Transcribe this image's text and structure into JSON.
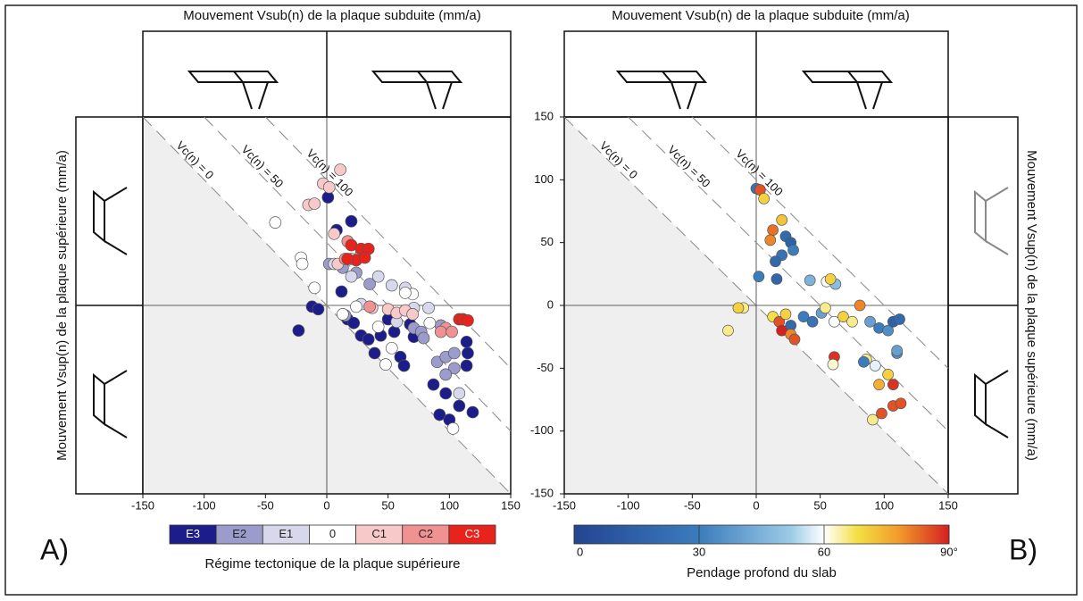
{
  "chart_data": [
    {
      "type": "scatter",
      "panel_label": "A)",
      "title": "Mouvement Vsub(n) de la plaque subduite (mm/a)",
      "y_label": "Mouvement Vsup(n) de la plaque supérieure (mm/a)",
      "xlim": [
        -150,
        150
      ],
      "ylim": [
        -150,
        150
      ],
      "xticks": [
        -150,
        -100,
        -50,
        0,
        50,
        100,
        150
      ],
      "annotations": [
        {
          "value": 0,
          "label": "Vc(n) = 0"
        },
        {
          "value": 50,
          "label": "Vc(n) = 50"
        },
        {
          "value": 100,
          "label": "Vc(n) = 100"
        }
      ],
      "legend_title": "Régime tectonique de la plaque supérieure",
      "series": [
        {
          "name": "E3",
          "color": "#1c1c8a",
          "x": [
            1,
            20,
            8,
            -12,
            -7,
            -23,
            12,
            17,
            22,
            28,
            34,
            44,
            55,
            68,
            71,
            60,
            63,
            87,
            97,
            92,
            100,
            115,
            114,
            108,
            119,
            114,
            50,
            39
          ],
          "y": [
            86,
            67,
            60,
            -1,
            -3,
            -20,
            11,
            -11,
            -14,
            -24,
            -27,
            -24,
            -21,
            -15,
            -25,
            -41,
            -48,
            -63,
            -70,
            -87,
            -91,
            -38,
            -48,
            -80,
            -85,
            -29,
            -11,
            -38
          ]
        },
        {
          "name": "E2",
          "color": "#9c9ccc",
          "x": [
            2,
            13,
            24,
            35,
            71,
            77,
            79,
            90,
            97,
            104,
            104,
            93,
            15,
            97
          ],
          "y": [
            33,
            30,
            26,
            17,
            -18,
            -21,
            -26,
            -45,
            -41,
            -50,
            -38,
            -16,
            -8,
            -55
          ]
        },
        {
          "name": "E1",
          "color": "#d8d8ec",
          "x": [
            6,
            20,
            42,
            53,
            64,
            71,
            83,
            28,
            57,
            108
          ],
          "y": [
            33,
            23,
            23,
            16,
            14,
            -2,
            -2,
            1,
            -13,
            -70
          ]
        },
        {
          "name": "0",
          "color": "#ffffff",
          "x": [
            -42,
            -21,
            -20,
            -10,
            13,
            24,
            42,
            48,
            53,
            103,
            70,
            84,
            64
          ],
          "y": [
            66,
            38,
            33,
            14,
            -7,
            -1,
            -17,
            -47,
            -34,
            -98,
            9,
            -14,
            10
          ]
        },
        {
          "name": "C1",
          "color": "#f7c9c9",
          "x": [
            -15,
            -10,
            -3,
            2,
            11,
            6,
            9,
            20,
            37,
            50,
            57,
            64,
            70
          ],
          "y": [
            80,
            81,
            97,
            94,
            108,
            57,
            33,
            37,
            -2,
            -3,
            -6,
            -4,
            -7
          ]
        },
        {
          "name": "C2",
          "color": "#f09292",
          "x": [
            15,
            17,
            28,
            97,
            93,
            102,
            35
          ],
          "y": [
            37,
            51,
            41,
            -18,
            -21,
            -21,
            -1
          ]
        },
        {
          "name": "C3",
          "color": "#e8231c",
          "x": [
            20,
            28,
            34,
            24,
            17,
            31,
            108,
            111,
            115
          ],
          "y": [
            48,
            45,
            45,
            36,
            37,
            38,
            -11,
            -11,
            -12
          ]
        }
      ]
    },
    {
      "type": "colored_scatter",
      "panel_label": "B)",
      "title": "Mouvement Vsub(n) de la plaque subduite (mm/a)",
      "y_label": "Mouvement Vsup(n) de la plaque supérieure (mm/a)",
      "xlim": [
        -150,
        150
      ],
      "ylim": [
        -150,
        150
      ],
      "xticks": [
        -150,
        -100,
        -50,
        0,
        50,
        100,
        150
      ],
      "yticks": [
        -150,
        -100,
        -50,
        0,
        50,
        100,
        150
      ],
      "annotations": [
        {
          "value": 0,
          "label": "Vc(n) = 0"
        },
        {
          "value": 50,
          "label": "Vc(n) = 50"
        },
        {
          "value": 100,
          "label": "Vc(n) = 100"
        }
      ],
      "colorbar_title": "Pendage profond du slab",
      "clim": [
        0,
        90
      ],
      "cticks": [
        0,
        30,
        60,
        {
          "value": 90,
          "label": "90°"
        }
      ],
      "colorscale": [
        {
          "value": 0,
          "color": "#234590"
        },
        {
          "value": 30,
          "color": "#3b7cbd"
        },
        {
          "value": 52,
          "color": "#9ccbe6"
        },
        {
          "value": 60,
          "color": "#ffffff"
        },
        {
          "value": 68,
          "color": "#f4df45"
        },
        {
          "value": 78,
          "color": "#f29a2a"
        },
        {
          "value": 90,
          "color": "#d42020"
        }
      ],
      "points": {
        "x": [
          0,
          3,
          3,
          6,
          20,
          13,
          11,
          23,
          27,
          29,
          20,
          15,
          2,
          16,
          42,
          55,
          62,
          58,
          -10,
          -14,
          -22,
          13,
          18,
          23,
          27,
          20,
          27,
          30,
          37,
          44,
          51,
          54,
          61,
          68,
          75,
          81,
          89,
          96,
          103,
          107,
          112,
          61,
          60,
          86,
          93,
          103,
          110,
          110,
          84,
          96,
          107,
          107,
          113,
          98,
          91
        ],
        "y": [
          93,
          92,
          92,
          85,
          68,
          60,
          52,
          55,
          50,
          44,
          40,
          35,
          23,
          21,
          20,
          19,
          17,
          21,
          -2,
          -2,
          -20,
          -9,
          -13,
          -7,
          -16,
          -20,
          -23,
          -27,
          -9,
          -13,
          -6,
          -2,
          -13,
          -9,
          -13,
          0,
          -13,
          -18,
          -20,
          -13,
          -11,
          -41,
          -47,
          -43,
          -48,
          -55,
          -38,
          -36,
          -45,
          -63,
          -80,
          -63,
          -78,
          -86,
          -91
        ],
        "c": [
          25,
          65,
          85,
          70,
          72,
          82,
          80,
          20,
          15,
          30,
          25,
          20,
          30,
          18,
          45,
          60,
          48,
          70,
          65,
          70,
          65,
          68,
          85,
          70,
          20,
          90,
          80,
          85,
          30,
          25,
          40,
          65,
          60,
          70,
          65,
          80,
          40,
          30,
          35,
          15,
          20,
          88,
          62,
          65,
          58,
          70,
          35,
          40,
          30,
          75,
          85,
          88,
          85,
          85,
          65
        ]
      }
    }
  ]
}
